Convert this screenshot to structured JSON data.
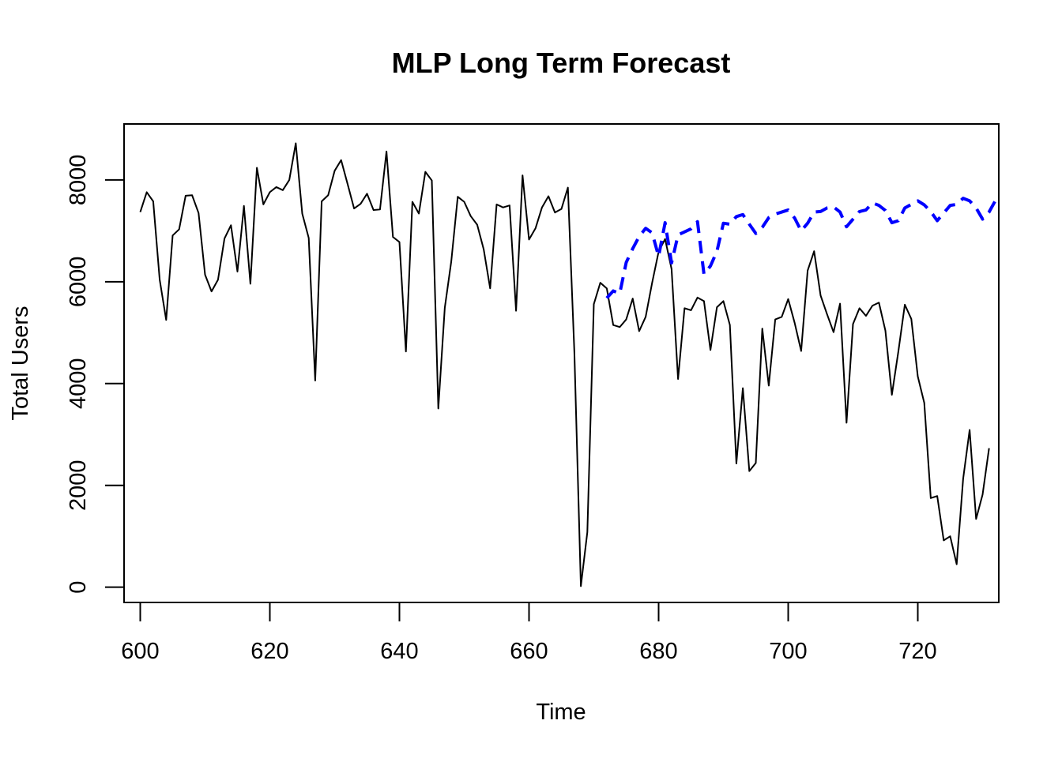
{
  "chart_data": {
    "type": "line",
    "title": "MLP Long Term Forecast",
    "xlabel": "Time",
    "ylabel": "Total Users",
    "xlim": [
      597.5,
      732.5
    ],
    "ylim": [
      -300,
      9100
    ],
    "xticks": [
      600,
      620,
      640,
      660,
      680,
      700,
      720
    ],
    "yticks": [
      0,
      2000,
      4000,
      6000,
      8000
    ],
    "xtick_labels": [
      "600",
      "620",
      "640",
      "660",
      "680",
      "700",
      "720"
    ],
    "ytick_labels": [
      "0",
      "2000",
      "4000",
      "6000",
      "8000"
    ],
    "grid": false,
    "series": [
      {
        "color": "#000000",
        "dash": "solid",
        "x_start": 600,
        "values": [
          7370,
          7760,
          7580,
          6040,
          5250,
          6910,
          7030,
          7690,
          7700,
          7350,
          6140,
          5810,
          6040,
          6850,
          7110,
          6200,
          7490,
          5960,
          8240,
          7520,
          7760,
          7860,
          7800,
          8000,
          8720,
          7340,
          6860,
          4060,
          7580,
          7700,
          8180,
          8390,
          7920,
          7440,
          7530,
          7730,
          7410,
          7420,
          8560,
          6880,
          6780,
          4630,
          7570,
          7340,
          8160,
          7990,
          3510,
          5490,
          6400,
          7670,
          7570,
          7290,
          7120,
          6640,
          5870,
          7520,
          7460,
          7500,
          5430,
          8090,
          6830,
          7050,
          7460,
          7680,
          7360,
          7430,
          7850,
          4610,
          20,
          1080,
          5560,
          5980,
          5870,
          5150,
          5110,
          5260,
          5670,
          5030,
          5310,
          5980,
          6590,
          6840,
          6250,
          4090,
          5480,
          5440,
          5690,
          5620,
          4660,
          5500,
          5620,
          5150,
          2430,
          3910,
          2280,
          2440,
          5080,
          3960,
          5260,
          5310,
          5660,
          5190,
          4640,
          6220,
          6600,
          5730,
          5360,
          5010,
          5570,
          3230,
          5170,
          5480,
          5330,
          5530,
          5590,
          5040,
          3780,
          4630,
          5550,
          5270,
          4140,
          3620,
          1750,
          1790,
          920,
          1000,
          450,
          2130,
          3090,
          1340,
          1820,
          2730
        ]
      },
      {
        "color": "#0000ff",
        "dash": "dashed",
        "x_start": 672,
        "values": [
          5680,
          5820,
          5770,
          6380,
          6650,
          6890,
          7050,
          6960,
          6500,
          7160,
          6370,
          6920,
          6980,
          7040,
          7180,
          6150,
          6310,
          6600,
          7150,
          7130,
          7280,
          7320,
          7130,
          6950,
          7070,
          7260,
          7330,
          7370,
          7410,
          7250,
          7000,
          7150,
          7370,
          7380,
          7450,
          7470,
          7370,
          7080,
          7230,
          7380,
          7410,
          7550,
          7500,
          7400,
          7160,
          7200,
          7450,
          7520,
          7590,
          7510,
          7380,
          7200,
          7350,
          7500,
          7520,
          7640,
          7590,
          7450,
          7230,
          7370,
          7600
        ]
      }
    ]
  }
}
